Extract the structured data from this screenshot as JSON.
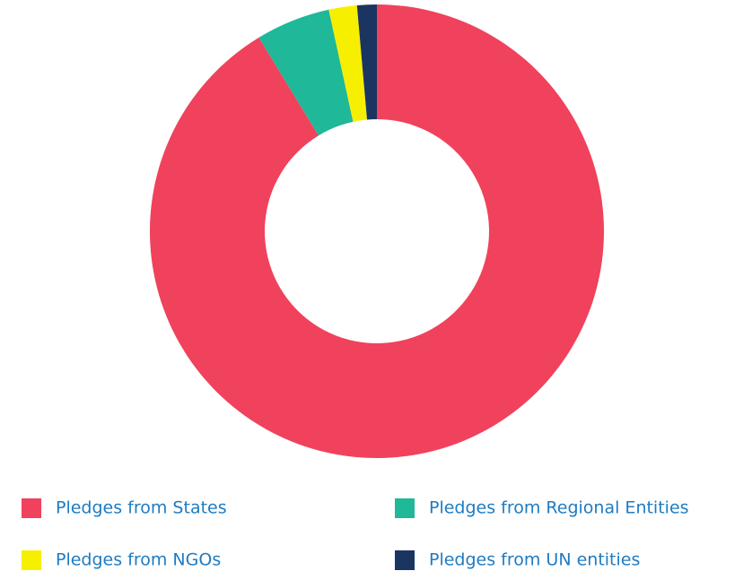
{
  "chart_data": {
    "type": "donut",
    "categories": [
      "Pledges from States",
      "Pledges from Regional Entities",
      "Pledges from NGOs",
      "Pledges from UN entities"
    ],
    "values": [
      91.3,
      5.3,
      2,
      1.4
    ],
    "colors": [
      "#f0425c",
      "#1fb899",
      "#f7ef00",
      "#1c3560"
    ]
  }
}
